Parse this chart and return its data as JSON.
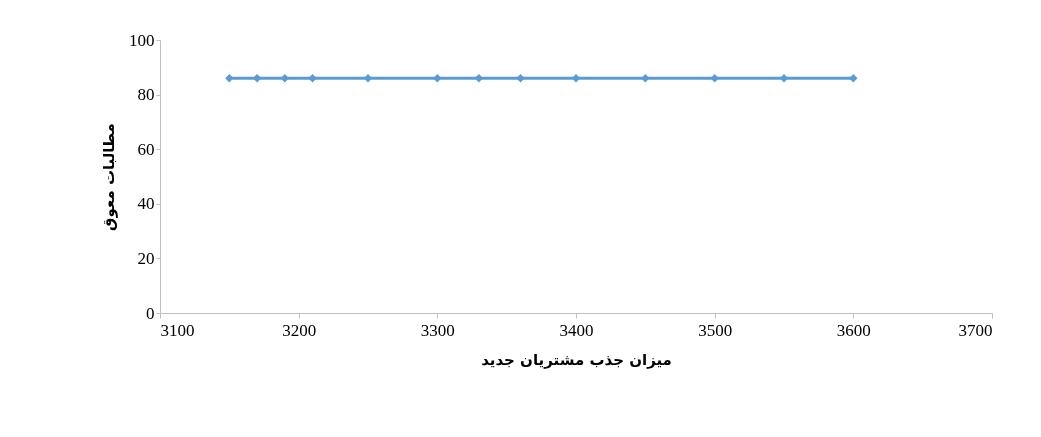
{
  "chart_data": {
    "type": "line",
    "xlabel": "میزان جذب مشتریان جدید",
    "ylabel": "مطالبات معوق",
    "x": [
      3150,
      3170,
      3190,
      3210,
      3250,
      3300,
      3330,
      3360,
      3400,
      3450,
      3500,
      3550,
      3600
    ],
    "series": [
      {
        "color": "#5b9bd5",
        "values": [
          86,
          86,
          86,
          86,
          86,
          86,
          86,
          86,
          86,
          86,
          86,
          86,
          86
        ]
      }
    ],
    "xlim": [
      3100,
      3700
    ],
    "xticks": [
      3100,
      3200,
      3300,
      3400,
      3500,
      3600,
      3700
    ],
    "ylim": [
      0,
      100
    ],
    "yticks": [
      0,
      20,
      40,
      60,
      80,
      100
    ],
    "marker": "diamond",
    "line_style": "solid"
  }
}
